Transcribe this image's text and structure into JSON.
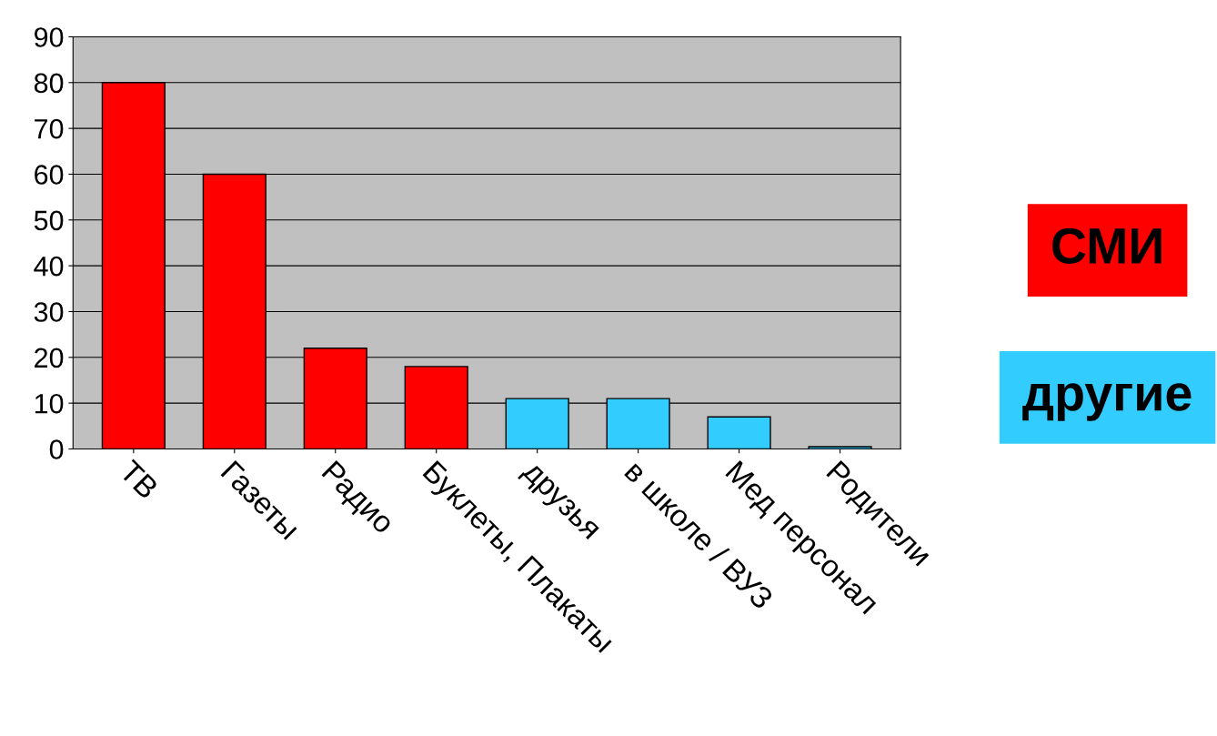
{
  "chart_data": {
    "type": "bar",
    "categories": [
      "ТВ",
      "Газеты",
      "Радио",
      "Буклеты, Плакаты",
      "друзья",
      "в школе / ВУЗ",
      "Мед персонал",
      "Родители"
    ],
    "series": [
      {
        "name": "СМИ",
        "color": "#ff0000",
        "values": [
          80,
          60,
          22,
          18,
          null,
          null,
          null,
          null
        ]
      },
      {
        "name": "другие",
        "color": "#33ccff",
        "values": [
          null,
          null,
          null,
          null,
          11,
          11,
          7,
          0.5
        ]
      }
    ],
    "ylim": [
      0,
      90
    ],
    "yticks": [
      0,
      10,
      20,
      30,
      40,
      50,
      60,
      70,
      80,
      90
    ],
    "grid": "y",
    "legend": "right"
  }
}
